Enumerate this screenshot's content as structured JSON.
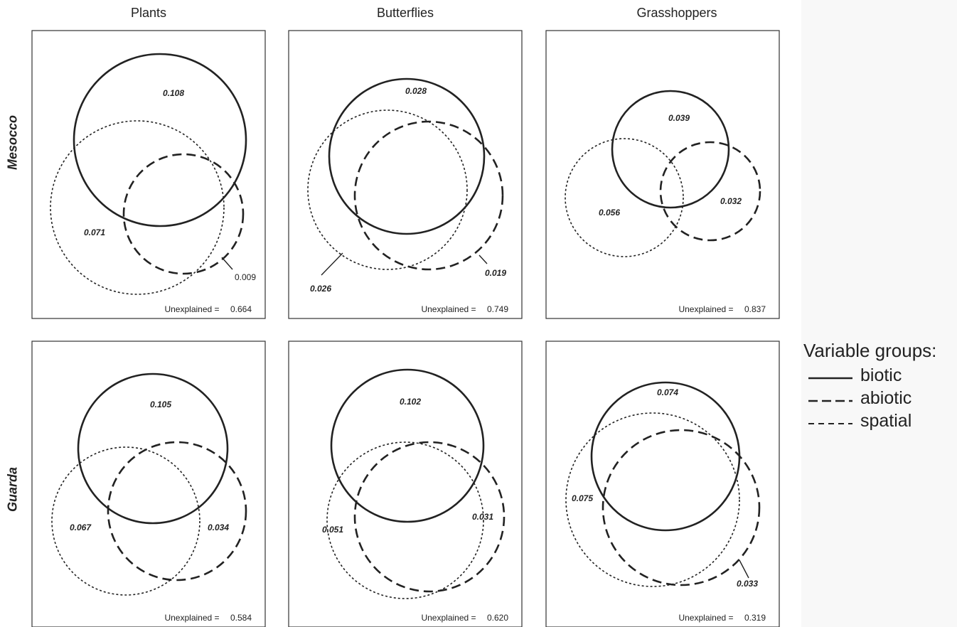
{
  "column_titles": [
    "Plants",
    "Butterflies",
    "Grasshoppers"
  ],
  "row_labels": [
    "Mesocco",
    "Guarda"
  ],
  "unexplained_label": "Unexplained =",
  "legend": {
    "title": "Variable groups:",
    "items": [
      {
        "name": "biotic",
        "style": "solid"
      },
      {
        "name": "abiotic",
        "style": "long-dash"
      },
      {
        "name": "spatial",
        "style": "short-dash"
      }
    ]
  },
  "colors": {
    "stroke": "#222222",
    "frame": "#333333",
    "background": "#ffffff"
  },
  "panels": [
    {
      "row": "Mesocco",
      "column": "Plants",
      "biotic": "0.108",
      "spatial": "0.071",
      "abiotic": "0.009",
      "unexplained": "0.664"
    },
    {
      "row": "Mesocco",
      "column": "Butterflies",
      "biotic": "0.028",
      "spatial": "0.026",
      "abiotic": "0.019",
      "unexplained": "0.749"
    },
    {
      "row": "Mesocco",
      "column": "Grasshoppers",
      "biotic": "0.039",
      "spatial": "0.056",
      "abiotic": "0.032",
      "unexplained": "0.837"
    },
    {
      "row": "Guarda",
      "column": "Plants",
      "biotic": "0.105",
      "spatial": "0.067",
      "abiotic": "0.034",
      "unexplained": "0.584"
    },
    {
      "row": "Guarda",
      "column": "Butterflies",
      "biotic": "0.102",
      "spatial": "0.051",
      "abiotic": "0.031",
      "unexplained": "0.620"
    },
    {
      "row": "Guarda",
      "column": "Grasshoppers",
      "biotic": "0.074",
      "spatial": "0.075",
      "abiotic": "0.033",
      "unexplained": "0.319"
    }
  ]
}
